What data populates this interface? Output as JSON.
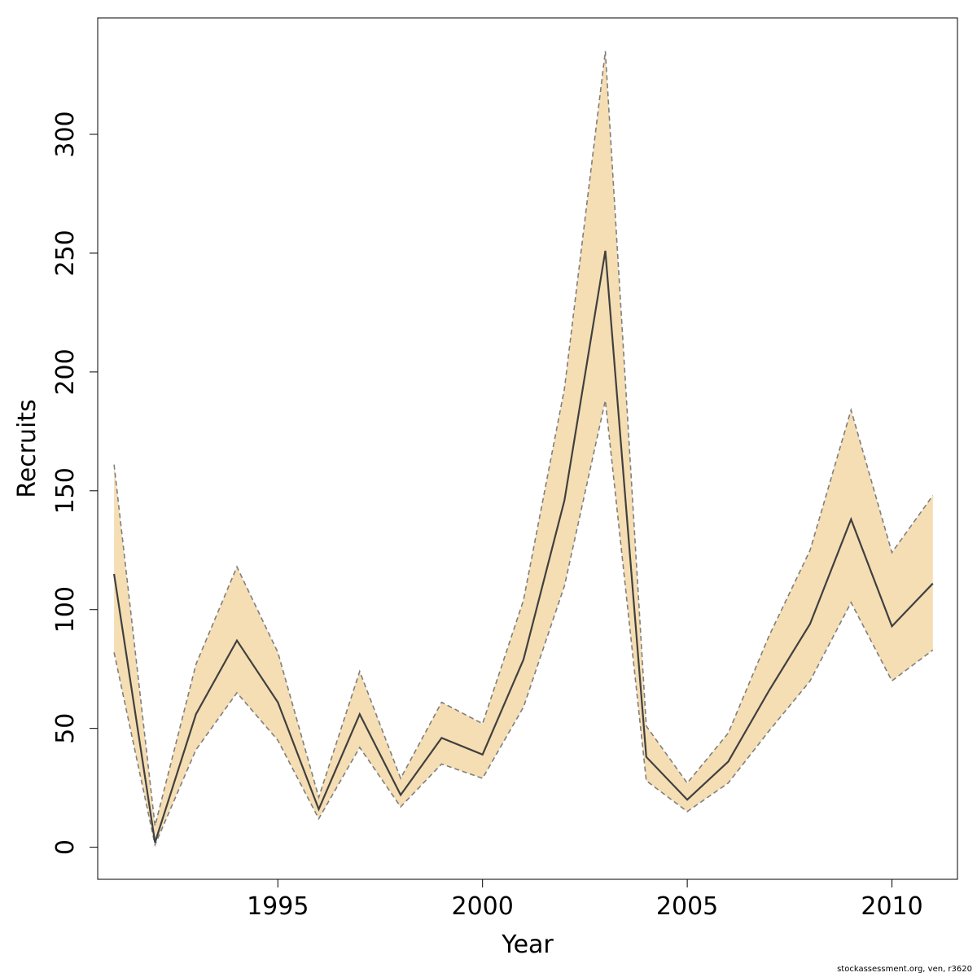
{
  "chart_data": {
    "type": "line",
    "title": "",
    "xlabel": "Year",
    "ylabel": "Recruits",
    "xlim": [
      1990.6,
      2011.6
    ],
    "ylim": [
      -13.5,
      349
    ],
    "x_ticks": [
      1995,
      2000,
      2005,
      2010
    ],
    "y_ticks": [
      0,
      50,
      100,
      150,
      200,
      250,
      300
    ],
    "x": [
      1991,
      1992,
      1993,
      1994,
      1995,
      1996,
      1997,
      1998,
      1999,
      2000,
      2001,
      2002,
      2003,
      2004,
      2005,
      2006,
      2007,
      2008,
      2009,
      2010,
      2011
    ],
    "series": [
      {
        "role": "estimate",
        "values": [
          115,
          2,
          56,
          87,
          61,
          16,
          56,
          22,
          46,
          39,
          79,
          146,
          251,
          38,
          20,
          36,
          66,
          94,
          138,
          93,
          111
        ]
      },
      {
        "role": "upper-bound",
        "values": [
          161,
          9,
          77,
          118,
          82,
          21,
          74,
          29,
          61,
          52,
          104,
          193,
          335,
          51,
          27,
          48,
          89,
          125,
          184,
          124,
          148
        ]
      },
      {
        "role": "lower-bound",
        "values": [
          82,
          1,
          41,
          65,
          45,
          12,
          42,
          17,
          35,
          29,
          59,
          110,
          188,
          28,
          15,
          27,
          49,
          70,
          103,
          70,
          83
        ]
      }
    ],
    "colors": {
      "band": "#f5deb3",
      "bound_line": "#7f7f7f",
      "estimate_line": "#404040"
    },
    "grid": false,
    "legend": "none"
  },
  "footer": "stockassessment.org, ven, r3620"
}
